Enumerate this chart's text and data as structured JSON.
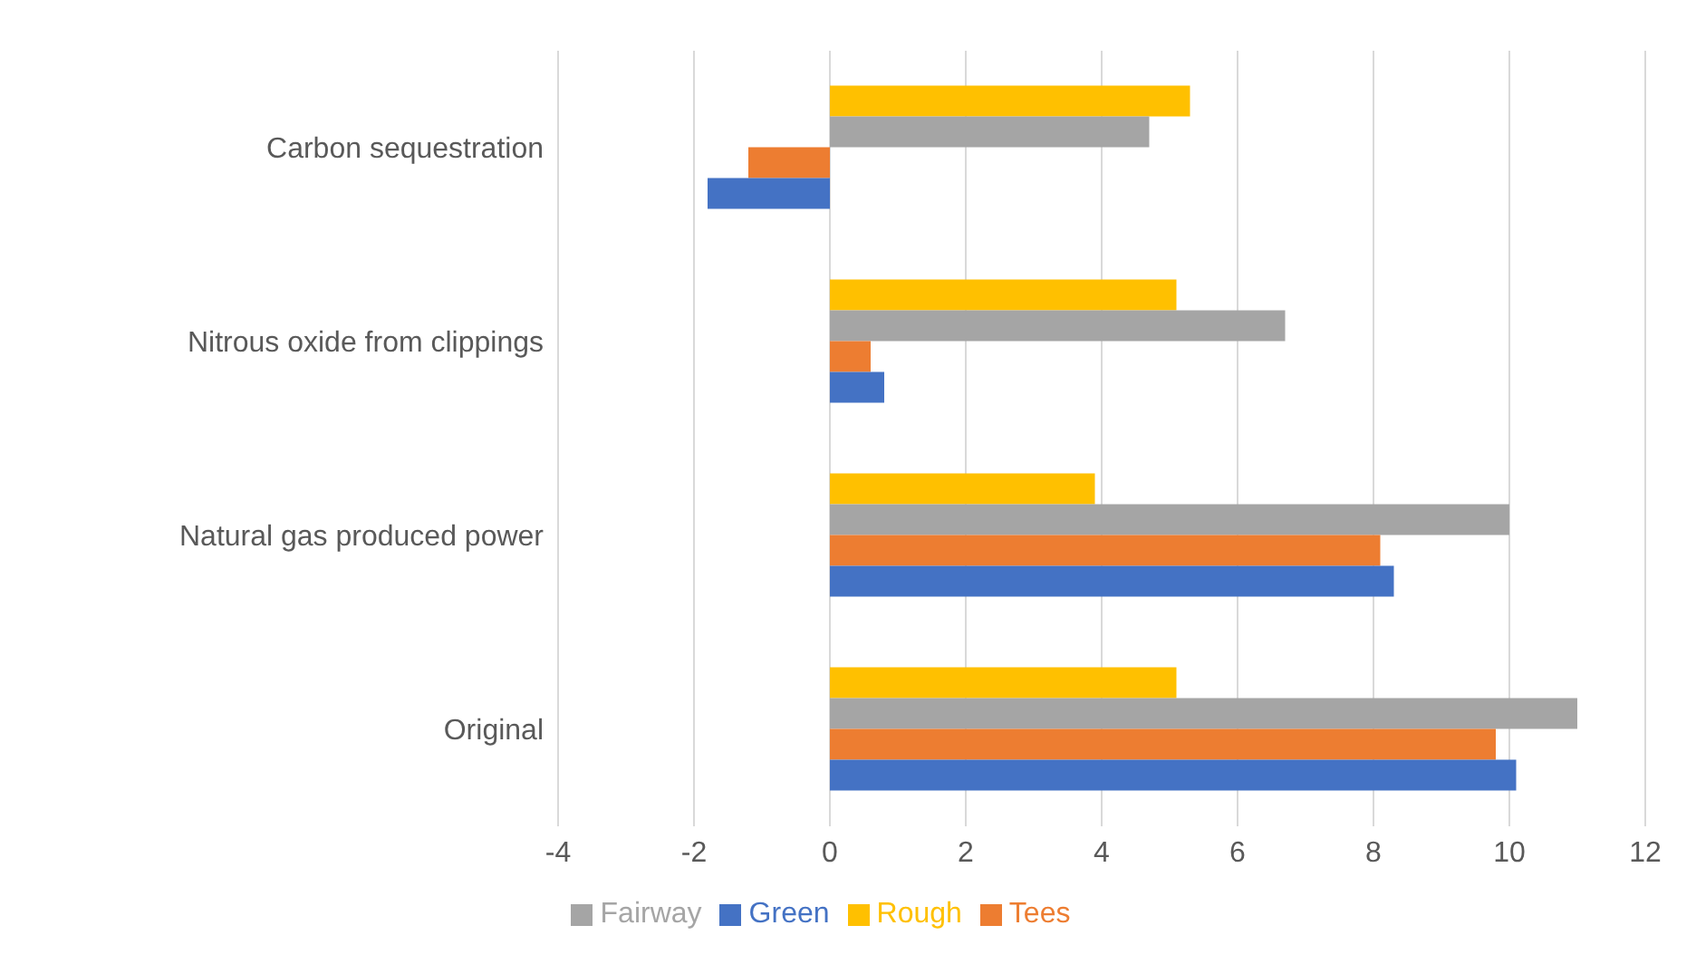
{
  "chart_data": {
    "type": "bar",
    "orientation": "horizontal",
    "categories": [
      "Carbon sequestration",
      "Nitrous oxide from clippings",
      "Natural gas produced power",
      "Original"
    ],
    "series": [
      {
        "name": "Rough",
        "color": "#ffc000",
        "values": [
          5.3,
          5.1,
          3.9,
          5.1
        ]
      },
      {
        "name": "Fairway",
        "color": "#a5a5a5",
        "values": [
          4.7,
          6.7,
          10.0,
          11.0
        ]
      },
      {
        "name": "Tees",
        "color": "#ed7d31",
        "values": [
          -1.2,
          0.6,
          8.1,
          9.8
        ]
      },
      {
        "name": "Green",
        "color": "#4472c4",
        "values": [
          -1.8,
          0.8,
          8.3,
          10.1
        ]
      }
    ],
    "xlim": [
      -4,
      12
    ],
    "xticks": [
      -4,
      -2,
      0,
      2,
      4,
      6,
      8,
      10,
      12
    ],
    "grid": "x",
    "legend": "bottom"
  }
}
